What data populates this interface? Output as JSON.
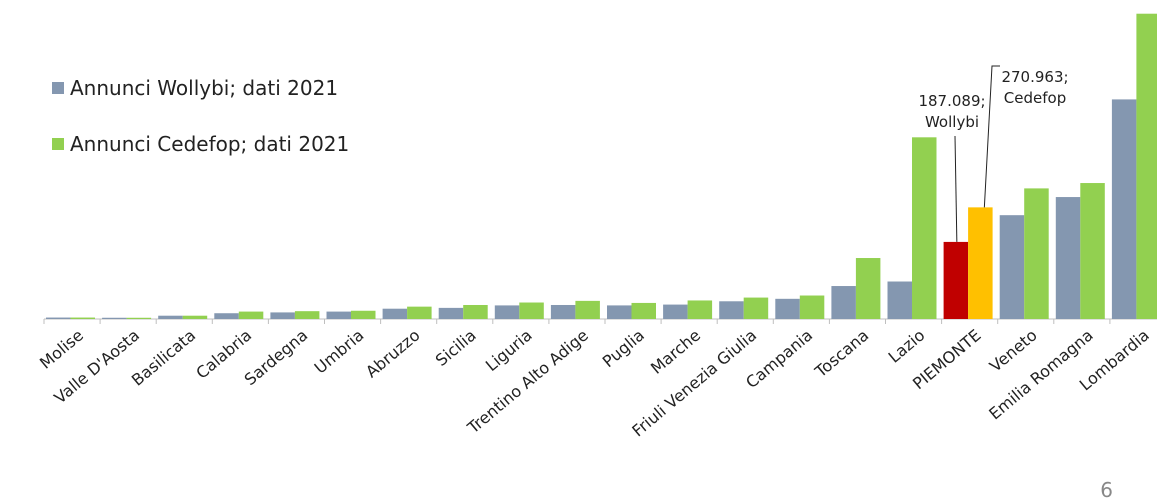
{
  "chart_data": {
    "type": "bar",
    "categories": [
      "Molise",
      "Valle D'Aosta",
      "Basilicata",
      "Calabria",
      "Sardegna",
      "Umbria",
      "Abruzzo",
      "Sicilia",
      "Liguria",
      "Trentino Alto Adige",
      "Puglia",
      "Marche",
      "Friuli Venezia Giulia",
      "Campania",
      "Toscana",
      "Lazio",
      "PIEMONTE",
      "Veneto",
      "Emilia Romagna",
      "Lombardia"
    ],
    "series": [
      {
        "name": "Annunci Wollybi; dati 2021",
        "color": "#8497B0",
        "values": [
          3500,
          3000,
          8000,
          14000,
          16000,
          18000,
          25000,
          27000,
          33000,
          34000,
          33000,
          35000,
          43000,
          49000,
          80000,
          91000,
          187089,
          252000,
          296000,
          533000
        ]
      },
      {
        "name": "Annunci Cedefop; dati 2021",
        "color": "#92D050",
        "values": [
          3500,
          3000,
          8000,
          18000,
          19000,
          20000,
          30000,
          34000,
          40000,
          44000,
          39000,
          45000,
          52000,
          57000,
          148000,
          441000,
          270963,
          317000,
          330000,
          741000
        ]
      }
    ],
    "highlight": {
      "category": "PIEMONTE",
      "colors": [
        "#C00000",
        "#FFC000"
      ]
    },
    "annotations": [
      {
        "category": "PIEMONTE",
        "series": 0,
        "lines": [
          "187.089;",
          "Wollybi"
        ]
      },
      {
        "category": "PIEMONTE",
        "series": 1,
        "lines": [
          "270.963;",
          "Cedefop"
        ]
      }
    ],
    "ylim": [
      0,
      750000
    ],
    "grid": false,
    "legend_position": "top-left"
  },
  "page_number": "6"
}
